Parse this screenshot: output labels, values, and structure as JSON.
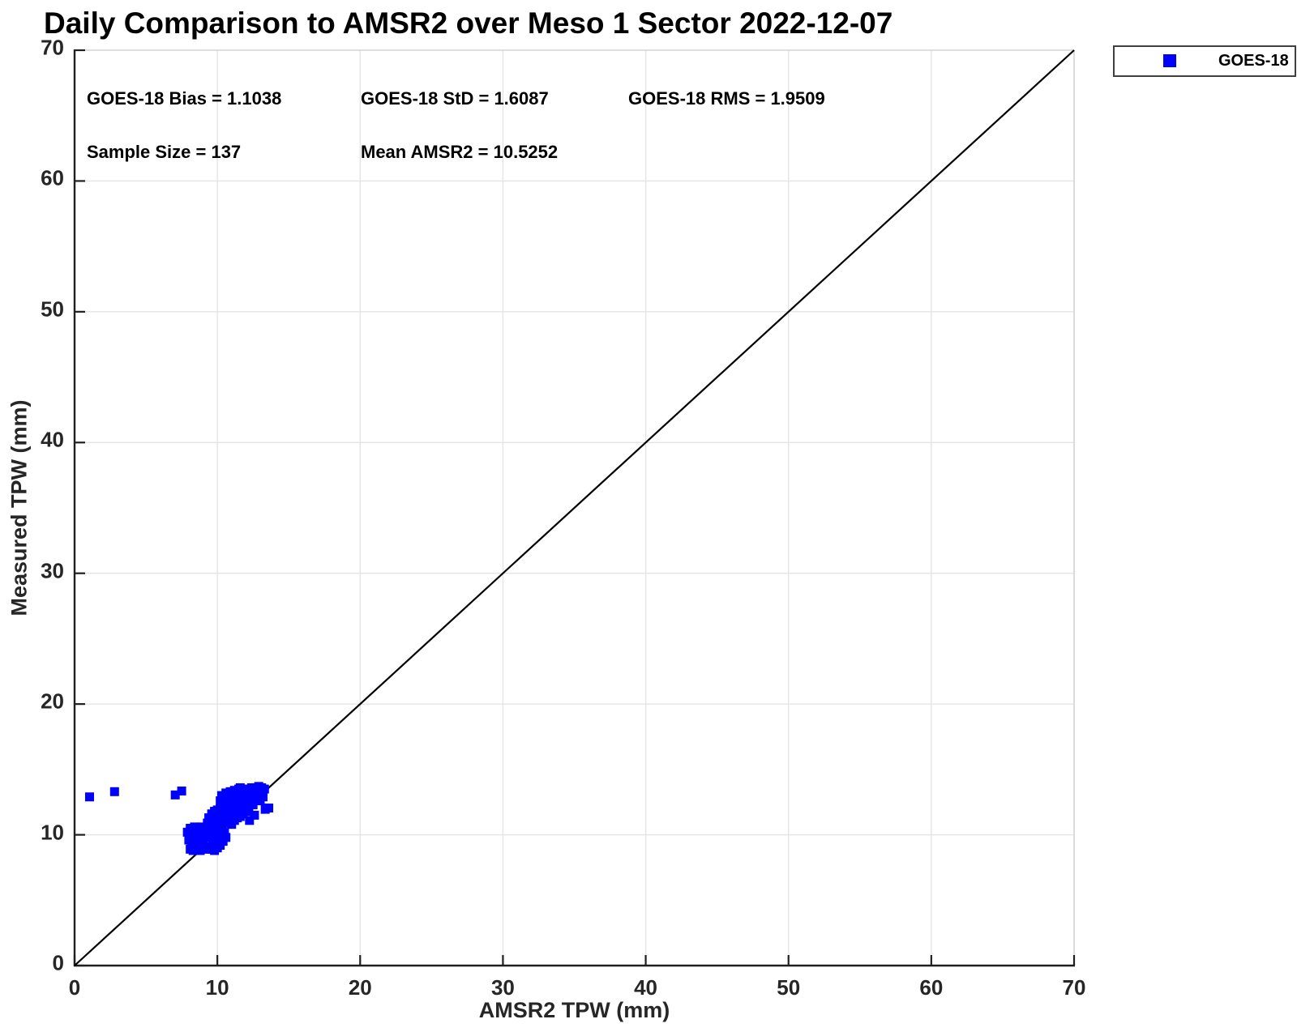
{
  "chart": {
    "title": "Daily Comparison to AMSR2 over Meso 1 Sector 2022-12-07",
    "xlabel": "AMSR2 TPW (mm)",
    "ylabel": "Measured TPW (mm)"
  },
  "legend": {
    "label": "GOES-18",
    "marker_color": "#0000ff"
  },
  "stats_annotations": [
    {
      "text": "GOES-18 Bias = 1.1038",
      "row": 0,
      "col": 0
    },
    {
      "text": "GOES-18 StD = 1.6087",
      "row": 0,
      "col": 1
    },
    {
      "text": "GOES-18 RMS = 1.9509",
      "row": 0,
      "col": 2
    },
    {
      "text": "Sample Size = 137",
      "row": 1,
      "col": 0
    },
    {
      "text": "Mean AMSR2 = 10.5252",
      "row": 1,
      "col": 1
    }
  ],
  "chart_data": {
    "type": "scatter",
    "title": "Daily Comparison to AMSR2 over Meso 1 Sector 2022-12-07",
    "xlabel": "AMSR2 TPW (mm)",
    "ylabel": "Measured TPW (mm)",
    "xlim": [
      0,
      70
    ],
    "ylim": [
      0,
      70
    ],
    "xticks": [
      0,
      10,
      20,
      30,
      40,
      50,
      60,
      70
    ],
    "yticks": [
      0,
      10,
      20,
      30,
      40,
      50,
      60,
      70
    ],
    "grid": true,
    "grid_color": "#e4e4e4",
    "axis_color": "#1f1f1f",
    "box_light_color": "#d4d4d4",
    "legend_position": "top-right-outside",
    "reference_line": {
      "type": "identity",
      "from": [
        0,
        0
      ],
      "to": [
        70,
        70
      ],
      "color": "#000000"
    },
    "stats": {
      "bias": 1.1038,
      "std": 1.6087,
      "rms": 1.9509,
      "sample_size": 137,
      "mean_amsr2": 10.5252
    },
    "series": [
      {
        "name": "GOES-18",
        "marker": "square",
        "color": "#0000ff",
        "points": [
          [
            1.05,
            12.9
          ],
          [
            2.8,
            13.3
          ],
          [
            7.05,
            13.05
          ],
          [
            7.5,
            13.35
          ],
          [
            12.25,
            11.1
          ],
          [
            12.6,
            11.5
          ],
          [
            13.35,
            11.95
          ],
          [
            13.6,
            12.05
          ],
          [
            7.9,
            10.2
          ],
          [
            8.0,
            9.6
          ],
          [
            8.1,
            10.5
          ],
          [
            8.1,
            8.9
          ],
          [
            8.2,
            9.9
          ],
          [
            8.2,
            9.2
          ],
          [
            8.3,
            10.3
          ],
          [
            8.3,
            8.8
          ],
          [
            8.4,
            9.5
          ],
          [
            8.4,
            10.6
          ],
          [
            8.5,
            9.0
          ],
          [
            8.5,
            10.1
          ],
          [
            8.6,
            9.7
          ],
          [
            8.6,
            8.9
          ],
          [
            8.7,
            10.4
          ],
          [
            8.7,
            9.3
          ],
          [
            8.8,
            9.9
          ],
          [
            8.8,
            8.8
          ],
          [
            8.9,
            10.6
          ],
          [
            9.0,
            9.5
          ],
          [
            9.1,
            10.1
          ],
          [
            9.2,
            8.9
          ],
          [
            9.3,
            9.8
          ],
          [
            9.4,
            10.4
          ],
          [
            9.4,
            9.1
          ],
          [
            9.5,
            9.9
          ],
          [
            9.6,
            8.9
          ],
          [
            9.6,
            10.5
          ],
          [
            9.7,
            9.4
          ],
          [
            9.8,
            10.0
          ],
          [
            9.8,
            8.8
          ],
          [
            9.9,
            9.6
          ],
          [
            10.0,
            10.3
          ],
          [
            10.0,
            9.0
          ],
          [
            10.1,
            9.8
          ],
          [
            10.2,
            10.5
          ],
          [
            10.2,
            9.2
          ],
          [
            10.4,
            9.5
          ],
          [
            10.5,
            10.2
          ],
          [
            10.6,
            9.8
          ],
          [
            9.3,
            10.9
          ],
          [
            9.4,
            11.3
          ],
          [
            9.5,
            10.7
          ],
          [
            9.6,
            11.6
          ],
          [
            9.7,
            11.0
          ],
          [
            9.8,
            11.8
          ],
          [
            9.9,
            11.2
          ],
          [
            10.0,
            11.9
          ],
          [
            10.0,
            10.8
          ],
          [
            10.1,
            11.4
          ],
          [
            10.2,
            12.0
          ],
          [
            10.3,
            11.1
          ],
          [
            10.3,
            11.7
          ],
          [
            10.4,
            12.2
          ],
          [
            10.5,
            10.9
          ],
          [
            10.5,
            11.5
          ],
          [
            10.6,
            12.1
          ],
          [
            10.7,
            11.2
          ],
          [
            10.7,
            11.8
          ],
          [
            10.8,
            12.3
          ],
          [
            10.9,
            11.0
          ],
          [
            10.9,
            11.6
          ],
          [
            11.0,
            12.2
          ],
          [
            11.0,
            10.8
          ],
          [
            11.1,
            11.4
          ],
          [
            11.1,
            12.0
          ],
          [
            11.2,
            11.1
          ],
          [
            11.3,
            11.7
          ],
          [
            11.3,
            12.3
          ],
          [
            11.4,
            11.3
          ],
          [
            10.2,
            12.6
          ],
          [
            10.3,
            13.0
          ],
          [
            10.4,
            12.4
          ],
          [
            10.5,
            12.8
          ],
          [
            10.6,
            13.2
          ],
          [
            10.7,
            12.5
          ],
          [
            10.8,
            12.9
          ],
          [
            10.9,
            13.3
          ],
          [
            11.0,
            12.6
          ],
          [
            11.1,
            13.0
          ],
          [
            11.2,
            13.4
          ],
          [
            11.2,
            12.4
          ],
          [
            11.3,
            12.8
          ],
          [
            11.4,
            13.1
          ],
          [
            11.5,
            12.5
          ],
          [
            11.5,
            13.5
          ],
          [
            11.6,
            12.9
          ],
          [
            11.7,
            13.2
          ],
          [
            11.7,
            12.6
          ],
          [
            11.8,
            13.5
          ],
          [
            11.9,
            12.8
          ],
          [
            11.9,
            13.1
          ],
          [
            12.0,
            13.4
          ],
          [
            12.0,
            12.6
          ],
          [
            12.1,
            12.9
          ],
          [
            12.1,
            13.2
          ],
          [
            12.2,
            13.5
          ],
          [
            12.2,
            12.7
          ],
          [
            11.6,
            13.6
          ],
          [
            10.9,
            12.7
          ],
          [
            12.3,
            13.0
          ],
          [
            12.3,
            13.4
          ],
          [
            12.4,
            12.7
          ],
          [
            12.4,
            13.6
          ],
          [
            12.5,
            13.1
          ],
          [
            12.6,
            13.4
          ],
          [
            12.6,
            12.8
          ],
          [
            12.7,
            13.6
          ],
          [
            12.7,
            13.0
          ],
          [
            12.8,
            13.3
          ],
          [
            12.9,
            13.7
          ],
          [
            12.9,
            12.9
          ],
          [
            13.0,
            13.4
          ],
          [
            13.0,
            12.6
          ],
          [
            13.1,
            13.1
          ],
          [
            13.1,
            13.6
          ],
          [
            13.2,
            13.3
          ],
          [
            13.2,
            12.9
          ],
          [
            13.3,
            13.5
          ],
          [
            12.5,
            12.3
          ],
          [
            11.5,
            11.8
          ],
          [
            11.6,
            11.4
          ],
          [
            11.7,
            12.0
          ],
          [
            11.8,
            11.6
          ],
          [
            11.9,
            12.2
          ],
          [
            12.0,
            11.8
          ],
          [
            12.1,
            12.3
          ],
          [
            12.2,
            12.0
          ],
          [
            12.3,
            12.3
          ]
        ]
      }
    ]
  }
}
